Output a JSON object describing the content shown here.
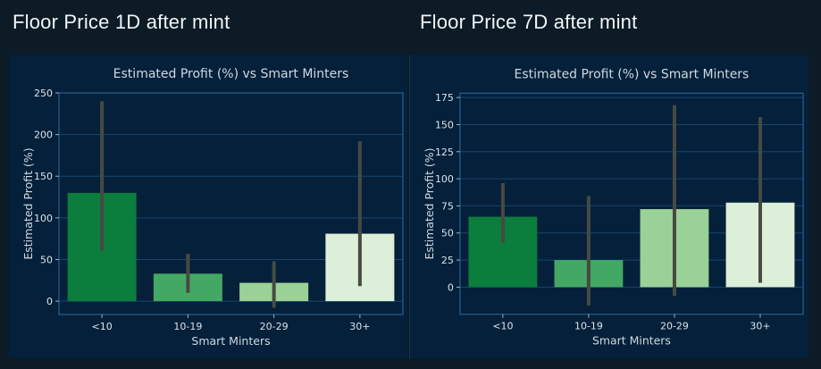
{
  "page": {
    "background": "#0c1b26",
    "sections": [
      {
        "header": "Floor Price 1D after mint"
      },
      {
        "header": "Floor Price 7D after mint"
      }
    ]
  },
  "theme": {
    "figure_bg": "#05203a",
    "grid_color": "#16466f",
    "spine_color": "#2a5f8f",
    "tick_mark_color": "#9db2c0",
    "tick_label_color": "#dbe4ea",
    "title_color": "#cfd9e0",
    "axis_label_color": "#cfd9e0",
    "error_bar_color": "#464a41",
    "header_color": "#f1f5f7"
  },
  "chart_data": [
    {
      "type": "bar",
      "title": "Estimated Profit (%) vs Smart Minters",
      "xlabel": "Smart Minters",
      "ylabel": "Estimated Profit (%)",
      "categories": [
        "<10",
        "10-19",
        "20-29",
        "30+"
      ],
      "values": [
        130,
        33,
        22,
        81
      ],
      "error_bars": [
        [
          60,
          240
        ],
        [
          10,
          57
        ],
        [
          -8,
          48
        ],
        [
          18,
          192
        ]
      ],
      "yticks": [
        0,
        50,
        100,
        150,
        200,
        250
      ],
      "ylim": [
        -16,
        250
      ],
      "bar_colors": [
        "#0b7d3d",
        "#43a863",
        "#9ad196",
        "#dcefd8"
      ],
      "grid": true,
      "legend": "none"
    },
    {
      "type": "bar",
      "title": "Estimated Profit (%) vs Smart Minters",
      "xlabel": "Smart Minters",
      "ylabel": "Estimated Profit (%)",
      "categories": [
        "<10",
        "10-19",
        "20-29",
        "30+"
      ],
      "values": [
        65,
        25,
        72,
        78
      ],
      "error_bars": [
        [
          41,
          96
        ],
        [
          -17,
          84
        ],
        [
          -8,
          168
        ],
        [
          4,
          157
        ]
      ],
      "yticks": [
        0,
        25,
        50,
        75,
        100,
        125,
        150,
        175
      ],
      "ylim": [
        -25,
        179
      ],
      "bar_colors": [
        "#0b7d3d",
        "#43a863",
        "#9ad196",
        "#dcefd8"
      ],
      "grid": true,
      "legend": "none"
    }
  ]
}
